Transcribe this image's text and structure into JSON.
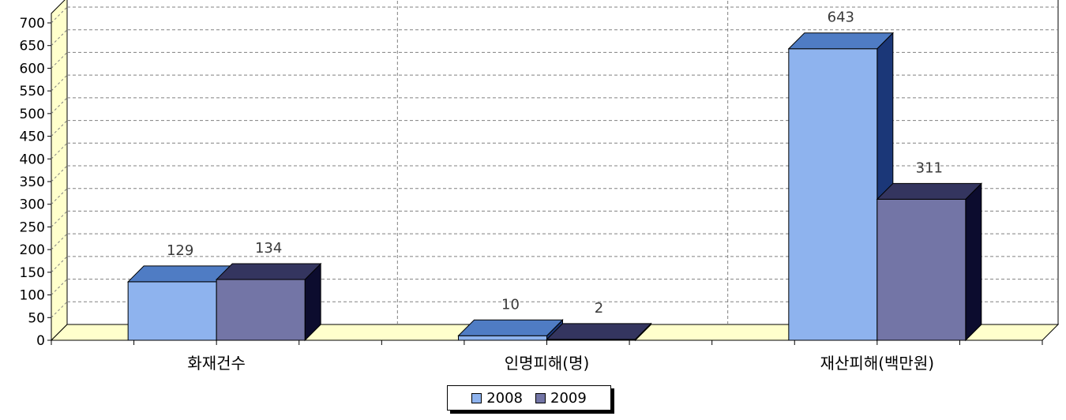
{
  "chart_data": {
    "type": "bar",
    "style": "3d-clustered",
    "categories": [
      "화재건수",
      "인명피해(명)",
      "재산피해(백만원)"
    ],
    "series": [
      {
        "name": "2008",
        "values": [
          129,
          10,
          643
        ],
        "color": "#8eb3ee",
        "top_color": "#4f7cc4",
        "side_color": "#1b3778"
      },
      {
        "name": "2009",
        "values": [
          134,
          2,
          311
        ],
        "color": "#7375a6",
        "top_color": "#34355f",
        "side_color": "#0c0c2e"
      }
    ],
    "data_labels": [
      [
        "129",
        "134"
      ],
      [
        "10",
        "2"
      ],
      [
        "643",
        "311"
      ]
    ],
    "y_ticks": [
      "0",
      "50",
      "100",
      "150",
      "200",
      "250",
      "300",
      "350",
      "400",
      "450",
      "500",
      "550",
      "600",
      "650",
      "700"
    ],
    "ylim": [
      0,
      700
    ],
    "grid": true,
    "legend_position": "bottom",
    "floor_color": "#ffffcc",
    "wall_color": "#ffffff"
  }
}
